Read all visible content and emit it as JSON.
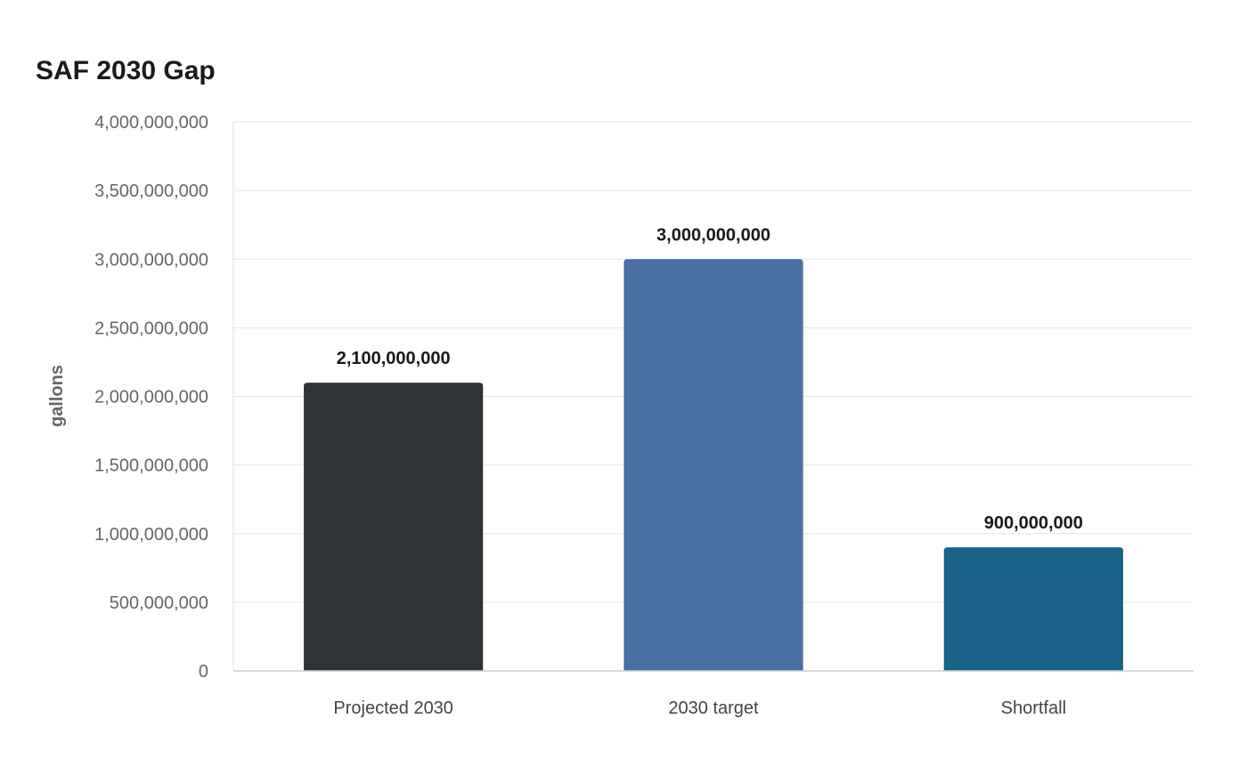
{
  "chart_data": {
    "type": "bar",
    "title": "SAF 2030 Gap",
    "xlabel": "",
    "ylabel": "gallons",
    "categories": [
      "Projected 2030",
      "2030 target",
      "Shortfall"
    ],
    "values": [
      2100000000,
      3000000000,
      900000000
    ],
    "data_labels": [
      "2,100,000,000",
      "3,000,000,000",
      "900,000,000"
    ],
    "bar_colors": [
      "#2e3436",
      "#4a6fa3",
      "#196389"
    ],
    "ylim": [
      0,
      4000000000
    ],
    "yticks": [
      0,
      500000000,
      1000000000,
      1500000000,
      2000000000,
      2500000000,
      3000000000,
      3500000000,
      4000000000
    ],
    "ytick_labels": [
      "0",
      "500,000,000",
      "1,000,000,000",
      "1,500,000,000",
      "2,000,000,000",
      "2,500,000,000",
      "3,000,000,000",
      "3,500,000,000",
      "4,000,000,000"
    ],
    "grid": true,
    "legend": "none"
  }
}
